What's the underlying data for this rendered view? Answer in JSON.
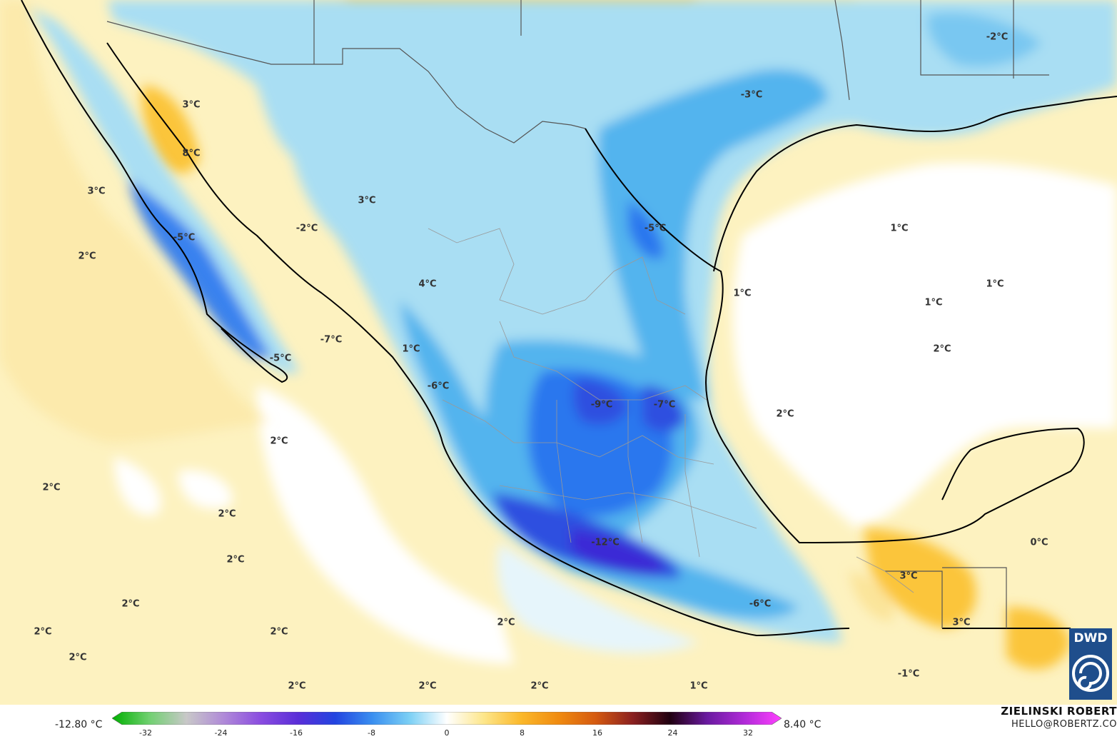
{
  "map": {
    "region": "Mexico",
    "colors": {
      "sea_warm": "#fdf2c0",
      "warm_light": "#fbe49a",
      "warm_mid": "#fbc53a",
      "warm_strong": "#f5a10e",
      "neutral": "#ffffff",
      "cold_pale": "#e6f5fb",
      "cold_light": "#a9def3",
      "cold_mid": "#52b4ee",
      "cold_strong": "#2a77ee",
      "cold_deep": "#2f4fe0",
      "cold_extreme": "#3a2bd6",
      "coast": "#000000",
      "border": "#888888"
    },
    "labels": [
      {
        "text": "-2°C"
      },
      {
        "text": "-3°C"
      },
      {
        "text": "3°C"
      },
      {
        "text": "8°C"
      },
      {
        "text": "3°C"
      },
      {
        "text": "3°C"
      },
      {
        "text": "-2°C"
      },
      {
        "text": "-5°C"
      },
      {
        "text": "-5°C"
      },
      {
        "text": "1°C"
      },
      {
        "text": "2°C"
      },
      {
        "text": "4°C"
      },
      {
        "text": "1°C"
      },
      {
        "text": "1°C"
      },
      {
        "text": "1°C"
      },
      {
        "text": "2°C"
      },
      {
        "text": "-7°C"
      },
      {
        "text": "1°C"
      },
      {
        "text": "-5°C"
      },
      {
        "text": "-6°C"
      },
      {
        "text": "-9°C"
      },
      {
        "text": "-7°C"
      },
      {
        "text": "2°C"
      },
      {
        "text": "2°C"
      },
      {
        "text": "2°C"
      },
      {
        "text": "2°C"
      },
      {
        "text": "-12°C"
      },
      {
        "text": "2°C"
      },
      {
        "text": "0°C"
      },
      {
        "text": "3°C"
      },
      {
        "text": "2°C"
      },
      {
        "text": "-6°C"
      },
      {
        "text": "3°C"
      },
      {
        "text": "2°C"
      },
      {
        "text": "2°C"
      },
      {
        "text": "2°C"
      },
      {
        "text": "2°C"
      },
      {
        "text": "2°C"
      },
      {
        "text": "2°C"
      },
      {
        "text": "2°C"
      },
      {
        "text": "1°C"
      },
      {
        "text": "-1°C"
      }
    ]
  },
  "legend": {
    "min": "-12.80 °C",
    "max": "8.40 °C",
    "ticks": [
      "-32",
      "-24",
      "-16",
      "-8",
      "0",
      "8",
      "16",
      "24",
      "32"
    ],
    "gradient": [
      "#00b000",
      "#70d070",
      "#c8c8c8",
      "#b08ad8",
      "#8a4ce0",
      "#5a2ed8",
      "#2244e0",
      "#3a8ff0",
      "#7cd0f5",
      "#ffffff",
      "#fde68a",
      "#fbb82a",
      "#f08b10",
      "#d55a10",
      "#8a2020",
      "#200010",
      "#6a1aa0",
      "#b02ad8",
      "#ff40ff"
    ]
  },
  "credits": {
    "author": "ZIELINSKI ROBERT",
    "email": "HELLO@ROBERTZ.CO",
    "logo_text": "DWD"
  }
}
